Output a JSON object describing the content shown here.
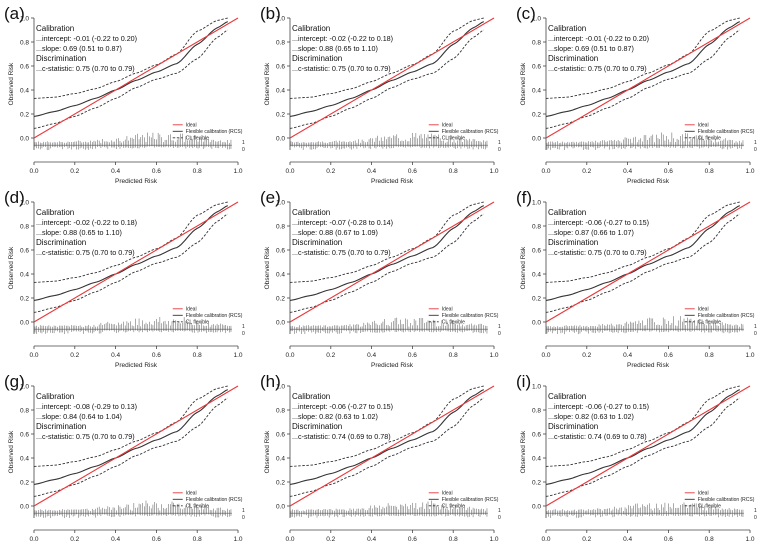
{
  "figure": {
    "panels": [
      {
        "label": "(a)",
        "intercept": "...intercept: -0.01 (-0.22 to 0.20)",
        "slope": "...slope: 0.69 (0.51 to 0.87)",
        "cstat": "...c-statistic: 0.75 (0.70 to 0.79)",
        "ylabel": "Observed Risk",
        "xlabel": "Predicted Risk"
      },
      {
        "label": "(b)",
        "intercept": "...intercept: -0.02 (-0.22 to 0.18)",
        "slope": "...slope: 0.88 (0.65 to 1.10)",
        "cstat": "...c-statistic: 0.75 (0.70 to 0.79)",
        "ylabel": "Observed Risk",
        "xlabel": "Predicted Risk"
      },
      {
        "label": "(c)",
        "intercept": "...intercept: -0.01 (-0.22 to 0.20)",
        "slope": "...slope: 0.69 (0.51 to 0.87)",
        "cstat": "...c-statistic: 0.75 (0.70 to 0.79)",
        "ylabel": "Observed Risk",
        "xlabel": "Predicted Risk"
      },
      {
        "label": "(d)",
        "intercept": "...intercept: -0.02 (-0.22 to 0.18)",
        "slope": "...slope: 0.88 (0.65 to 1.10)",
        "cstat": "...c-statistic: 0.75 (0.70 to 0.79)",
        "ylabel": "Observed Risk",
        "xlabel": "Predicted Risk"
      },
      {
        "label": "(e)",
        "intercept": "...intercept: -0.07 (-0.28 to 0.14)",
        "slope": "...slope: 0.88 (0.67 to 1.09)",
        "cstat": "...c-statistic: 0.75 (0.70 to 0.79)",
        "ylabel": "Observed Risk",
        "xlabel": "Predicted Risk"
      },
      {
        "label": "(f)",
        "intercept": "...intercept: -0.06 (-0.27 to 0.15)",
        "slope": "...slope: 0.87 (0.66 to 1.07)",
        "cstat": "...c-statistic: 0.75 (0.70 to 0.79)",
        "ylabel": "Observed Risk",
        "xlabel": "Predicted Risk"
      },
      {
        "label": "(g)",
        "intercept": "...intercept: -0.08 (-0.29 to 0.13)",
        "slope": "...slope: 0.84 (0.64 to 1.04)",
        "cstat": "...c-statistic: 0.75 (0.70 to 0.79)",
        "ylabel": "Observed Risk",
        "xlabel": ""
      },
      {
        "label": "(h)",
        "intercept": "...intercept: -0.06 (-0.27 to 0.15)",
        "slope": "...slope: 0.82 (0.63 to 1.02)",
        "cstat": "...c-statistic: 0.74 (0.69 to 0.78)",
        "ylabel": "Observed Risk",
        "xlabel": ""
      },
      {
        "label": "(i)",
        "intercept": "...intercept: -0.06 (-0.27 to 0.15)",
        "slope": "...slope: 0.82 (0.63 to 1.02)",
        "cstat": "...c-statistic: 0.74 (0.69 to 0.78)",
        "ylabel": "Observed Risk",
        "xlabel": ""
      }
    ]
  },
  "chart_data": {
    "type": "line",
    "title": "",
    "calibration_heading": "Calibration",
    "discrimination_heading": "Discrimination",
    "xlabel": "Predicted Risk",
    "ylabel": "Observed Risk",
    "xlim": [
      0.0,
      1.0
    ],
    "ylim": [
      -0.1,
      1.0
    ],
    "xticks": [
      "0.0",
      "0.2",
      "0.4",
      "0.6",
      "0.8",
      "1.0"
    ],
    "yticks": [
      "0.0",
      "0.2",
      "0.4",
      "0.6",
      "0.8",
      "1.0"
    ],
    "rug_labels": [
      "1",
      "0"
    ],
    "legend": {
      "position": "bottom-right",
      "entries": [
        "Ideal",
        "Flexible calibration (RCS)",
        "CL flexible"
      ]
    },
    "colors": {
      "ideal": "#e8383b",
      "flexible": "#333333",
      "cl": "#333333",
      "rug": "#555555"
    },
    "series": [
      {
        "name": "Ideal",
        "x": [
          0.0,
          1.0
        ],
        "y": [
          0.0,
          1.0
        ]
      },
      {
        "name": "Flexible calibration (RCS)",
        "x": [
          0.0,
          0.1,
          0.2,
          0.3,
          0.4,
          0.5,
          0.6,
          0.7,
          0.8,
          0.9,
          0.95
        ],
        "y": [
          0.18,
          0.22,
          0.27,
          0.33,
          0.4,
          0.48,
          0.55,
          0.62,
          0.78,
          0.92,
          0.97
        ]
      },
      {
        "name": "CL flexible upper",
        "x": [
          0.0,
          0.1,
          0.2,
          0.3,
          0.4,
          0.5,
          0.6,
          0.7,
          0.8,
          0.9,
          0.95
        ],
        "y": [
          0.33,
          0.34,
          0.37,
          0.41,
          0.47,
          0.54,
          0.61,
          0.7,
          0.89,
          0.98,
          1.0
        ]
      },
      {
        "name": "CL flexible lower",
        "x": [
          0.0,
          0.1,
          0.2,
          0.3,
          0.4,
          0.5,
          0.6,
          0.7,
          0.8,
          0.9,
          0.95
        ],
        "y": [
          0.08,
          0.12,
          0.18,
          0.25,
          0.33,
          0.42,
          0.49,
          0.54,
          0.66,
          0.84,
          0.9
        ]
      }
    ]
  }
}
